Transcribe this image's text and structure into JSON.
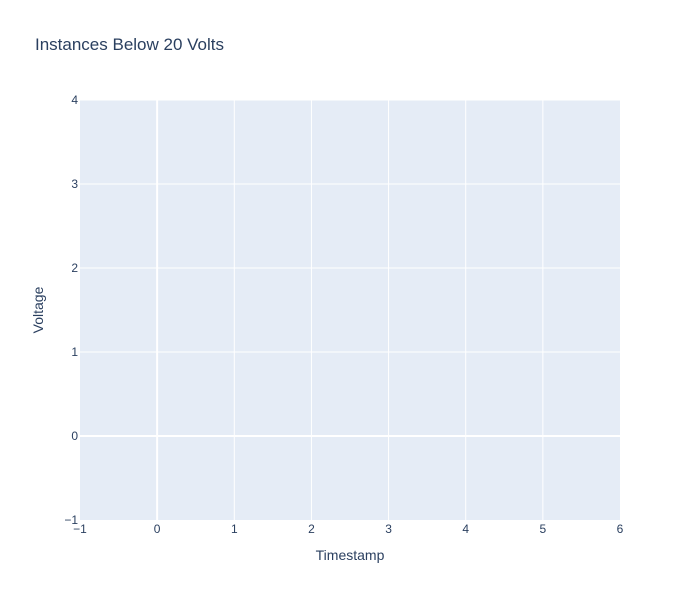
{
  "chart_data": {
    "type": "scatter",
    "title": "Instances Below 20 Volts",
    "xlabel": "Timestamp",
    "ylabel": "Voltage",
    "xlim": [
      -1,
      6
    ],
    "ylim": [
      -1,
      4
    ],
    "xticks": [
      "−1",
      "0",
      "1",
      "2",
      "3",
      "4",
      "5",
      "6"
    ],
    "yticks": [
      "−1",
      "0",
      "1",
      "2",
      "3",
      "4"
    ],
    "series": [],
    "grid": true,
    "colors": {
      "plot_background": "#e5ecf6",
      "gridline": "#ffffff",
      "text": "#2a3f5f"
    }
  }
}
